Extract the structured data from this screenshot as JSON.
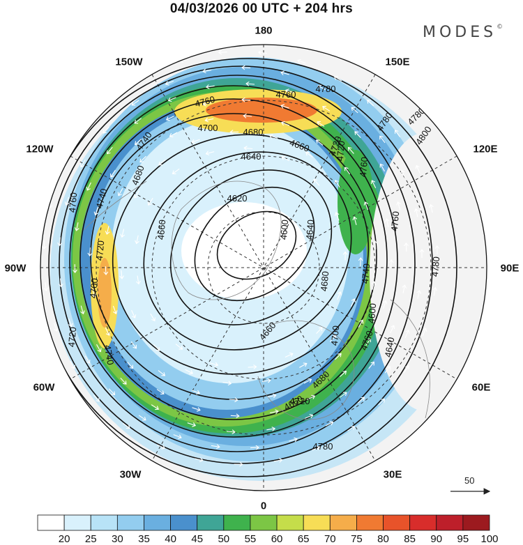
{
  "title": "04/03/2026  00 UTC  + 204 hrs",
  "brand": "MODES",
  "brand_mark": "©",
  "longitude_labels": {
    "deg180": "180",
    "deg150w": "150W",
    "deg150e": "150E",
    "deg120w": "120W",
    "deg120e": "120E",
    "deg90w": "90W",
    "deg90e": "90E",
    "deg60w": "60W",
    "deg60e": "60E",
    "deg30w": "30W",
    "deg30e": "30E",
    "deg0": "0"
  },
  "reference_vector": {
    "label": "50"
  },
  "colorbar": {
    "labels": [
      "20",
      "25",
      "30",
      "35",
      "40",
      "45",
      "50",
      "55",
      "60",
      "65",
      "70",
      "75",
      "80",
      "85",
      "90",
      "95",
      "100"
    ],
    "colors": [
      "#ffffff",
      "#d9f1fc",
      "#b8e3f7",
      "#93cdef",
      "#6aafe0",
      "#4a90cd",
      "#3fa596",
      "#3fb24d",
      "#7cc645",
      "#c5dd4a",
      "#f7dd56",
      "#f5ad4a",
      "#f07a32",
      "#e8532a",
      "#d82d2b",
      "#bd1f2a",
      "#9c1a1f"
    ]
  },
  "contour_labels": [
    "4780",
    "4760",
    "4760",
    "4740",
    "4700",
    "4680",
    "4660",
    "4640",
    "4620",
    "4600",
    "4740",
    "4720",
    "4700",
    "4680",
    "4660",
    "4640",
    "4660",
    "4680",
    "4720",
    "4740",
    "4760",
    "4780",
    "4800",
    "4780",
    "4760",
    "4740",
    "4720",
    "4700",
    "4680",
    "4660",
    "4600",
    "4640",
    "4720",
    "4760",
    "4780",
    "4720",
    "4760",
    "4780"
  ]
}
